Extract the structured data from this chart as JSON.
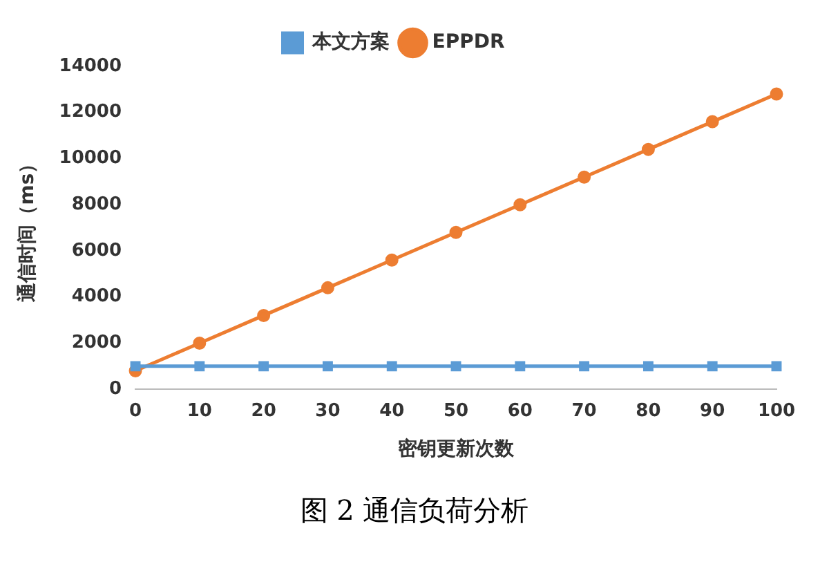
{
  "chart_data": {
    "type": "line",
    "categories": [
      "0",
      "10",
      "20",
      "30",
      "40",
      "50",
      "60",
      "70",
      "80",
      "90",
      "100"
    ],
    "series": [
      {
        "name": "本文方案",
        "color": "#5b9bd5",
        "marker": "square",
        "values": [
          1000,
          1000,
          1000,
          1000,
          1000,
          1000,
          1000,
          1000,
          1000,
          1000,
          1000
        ]
      },
      {
        "name": "EPPDR",
        "color": "#ed7d31",
        "marker": "circle",
        "values": [
          800,
          2000,
          3200,
          4400,
          5600,
          6800,
          8000,
          9200,
          10400,
          11600,
          12800
        ]
      }
    ],
    "xlabel": "密钥更新次数",
    "ylabel": "通信时间（ms）",
    "ylim": [
      0,
      14000
    ],
    "yticks": [
      0,
      2000,
      4000,
      6000,
      8000,
      10000,
      12000,
      14000
    ],
    "grid": false,
    "legend": "top",
    "annotations": [
      "图 2 通信负荷分析"
    ]
  }
}
